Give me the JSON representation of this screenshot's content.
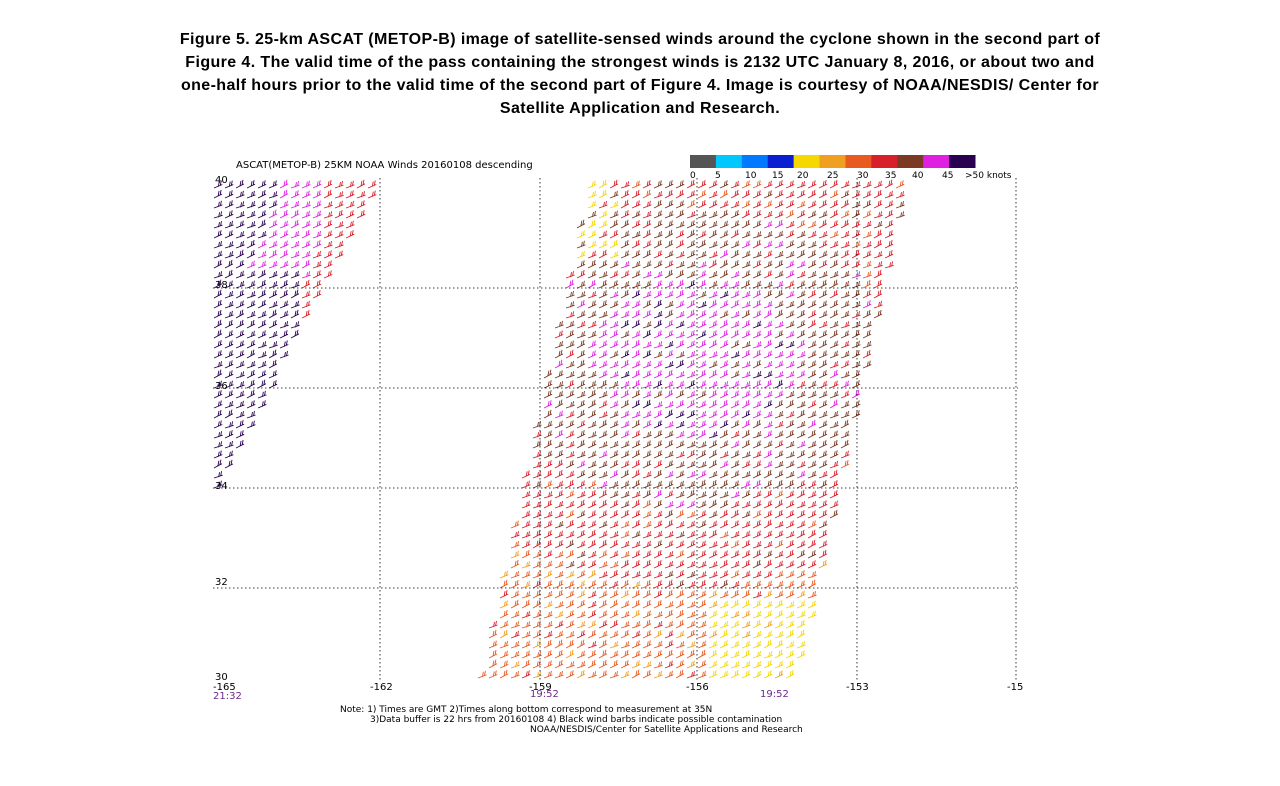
{
  "caption": {
    "lines": [
      "Figure 5. 25-km ASCAT (METOP-B) image of satellite-sensed winds around the cyclone shown in the second part of",
      "Figure 4. The valid time of the pass containing the strongest winds is 2132 UTC January 8, 2016, or about two and",
      "one-half hours prior to the valid time of the second part of Figure 4. Image is courtesy of NOAA/NESDIS/ Center for",
      "Satellite Application and Research."
    ]
  },
  "figure": {
    "title": "ASCAT(METOP-B) 25KM NOAA Winds 20160108 descending",
    "colorbar": {
      "labels": [
        "0",
        "5",
        "10",
        "15",
        "20",
        "25",
        "30",
        "35",
        "40",
        "45",
        ">50 knots"
      ]
    },
    "y_labels": [
      "40",
      "38",
      "36",
      "34",
      "32",
      "30"
    ],
    "x_labels": [
      "-165",
      "-162",
      "-159",
      "-156",
      "-153",
      "-15"
    ],
    "times": [
      "21:32",
      "19:52",
      "19:52"
    ],
    "notes": [
      "Note: 1) Times are GMT 2)Times along bottom correspond to measurement at 35N",
      "3)Data buffer is 22 hrs from 20160108 4) Black wind barbs indicate possible contamination",
      "NOAA/NESDIS/Center for Satellite Applications and Research"
    ]
  }
}
